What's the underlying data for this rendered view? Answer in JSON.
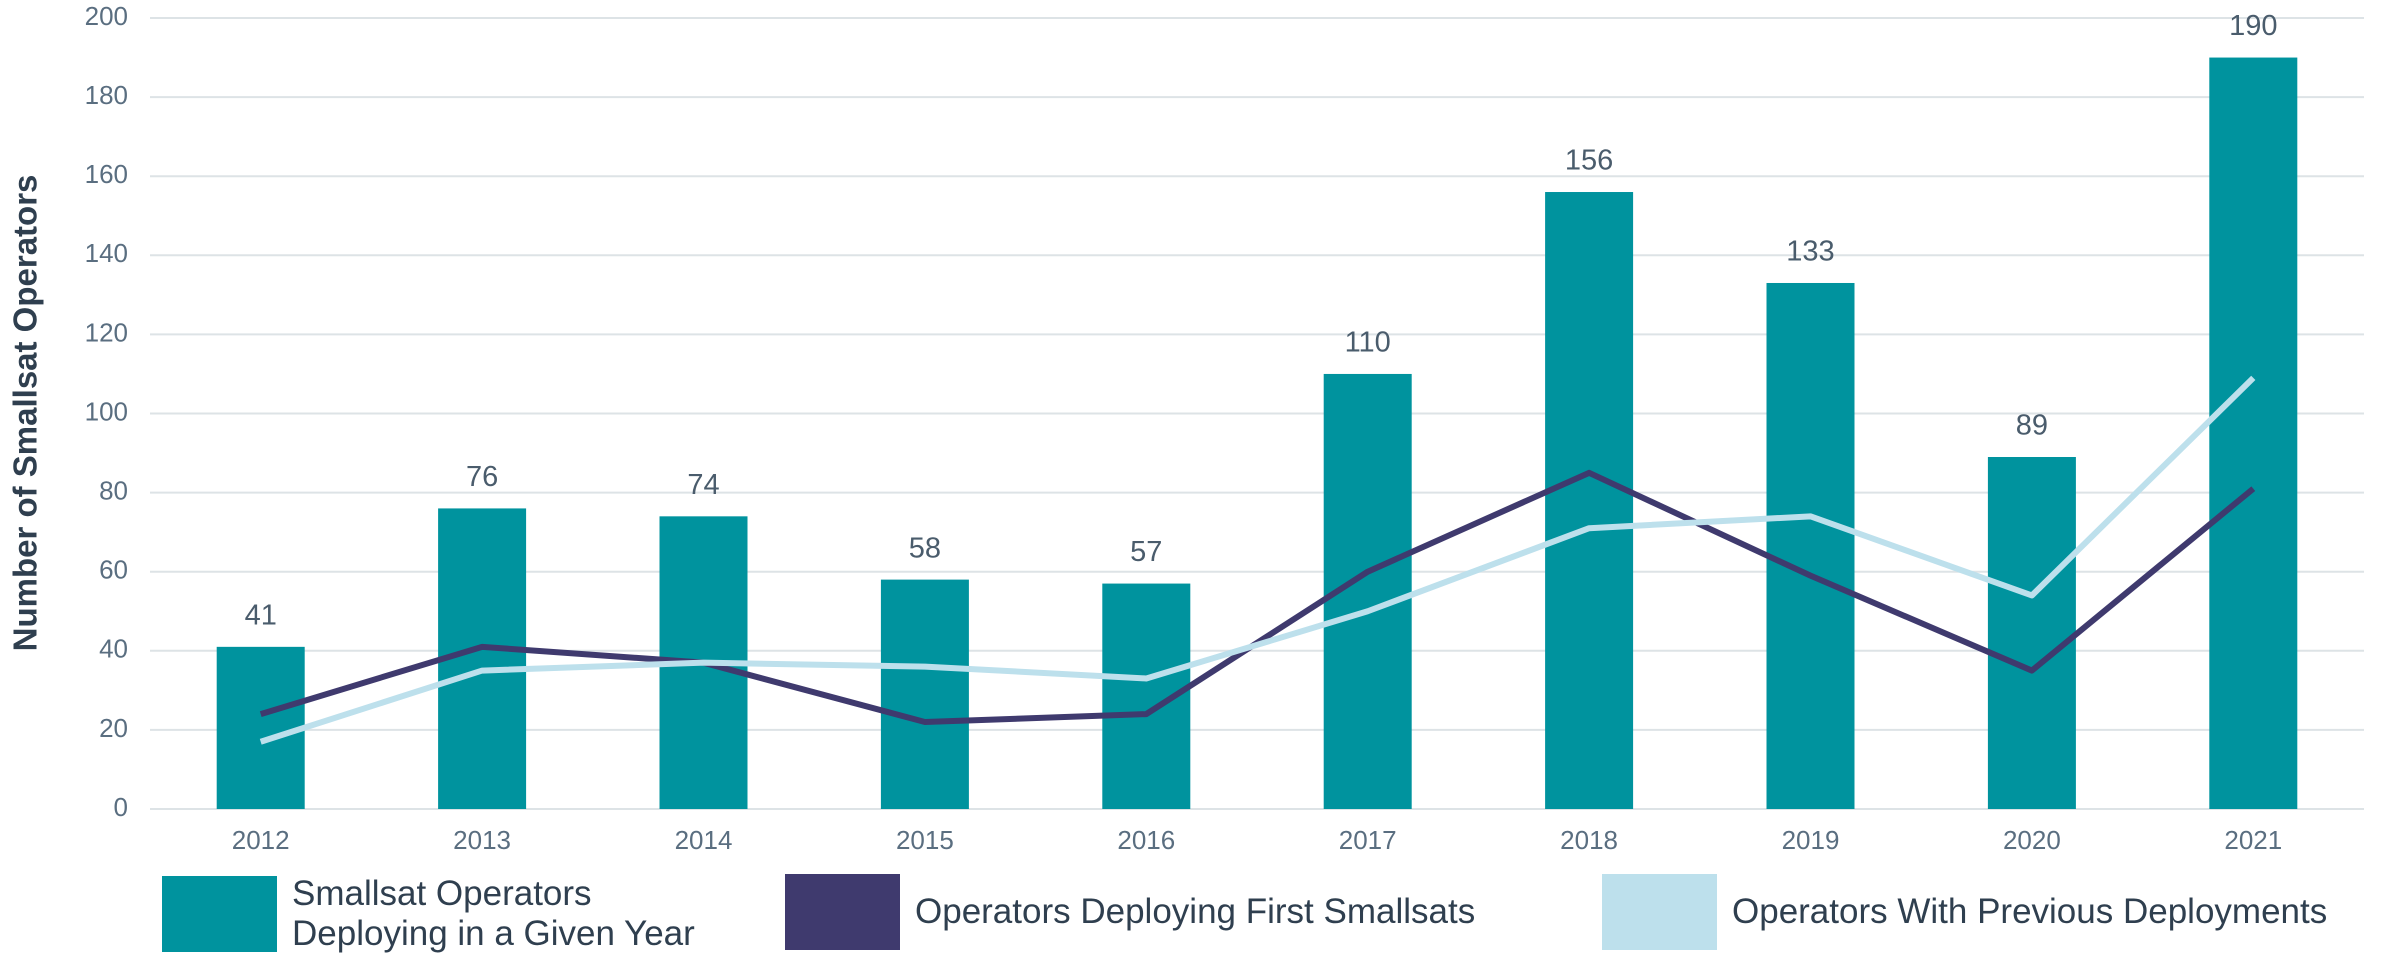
{
  "chart_data": {
    "type": "bar",
    "y_label": "Number of Smallsat Operators",
    "categories": [
      "2012",
      "2013",
      "2014",
      "2015",
      "2016",
      "2017",
      "2018",
      "2019",
      "2020",
      "2021"
    ],
    "series": [
      {
        "name": "Smallsat Operators Deploying in a Given Year",
        "type": "bar",
        "color": "#00939e",
        "values": [
          41,
          76,
          74,
          58,
          57,
          110,
          156,
          133,
          89,
          190
        ]
      },
      {
        "name": "Operators Deploying First Smallsats",
        "type": "line",
        "color": "#3f3a6e",
        "values": [
          24,
          41,
          37,
          22,
          24,
          60,
          85,
          59,
          35,
          81
        ]
      },
      {
        "name": "Operators With Previous Deployments",
        "type": "line",
        "color": "#bde0ec",
        "values": [
          17,
          35,
          37,
          36,
          33,
          50,
          71,
          74,
          54,
          109
        ]
      }
    ],
    "ylim": [
      0,
      200
    ],
    "yticks": [
      0,
      20,
      40,
      60,
      80,
      100,
      120,
      140,
      160,
      180,
      200
    ],
    "grid": true,
    "legend": "bottom"
  }
}
